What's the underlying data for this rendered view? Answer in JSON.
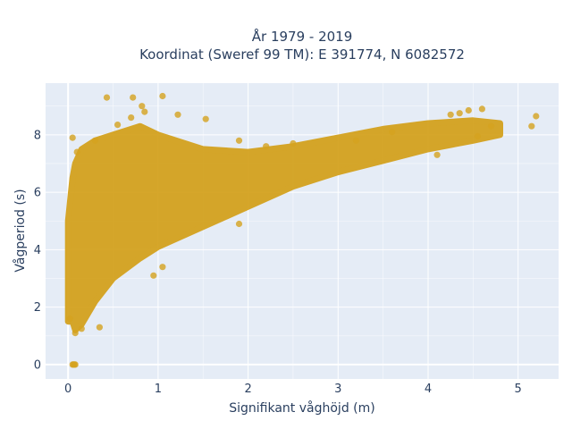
{
  "chart_data": {
    "type": "scatter",
    "title": "År 1979 - 2019",
    "subtitle": "Koordinat (Sweref 99 TM): E 391774, N 6082572",
    "xlabel": "Signifikant våghöjd (m)",
    "ylabel": "Vågperiod (s)",
    "xlim": [
      -0.25,
      5.45
    ],
    "ylim": [
      -0.5,
      9.8
    ],
    "x_ticks": [
      0,
      1,
      2,
      3,
      4,
      5
    ],
    "y_ticks": [
      0,
      2,
      4,
      6,
      8
    ],
    "x_tick_labels": [
      "0",
      "1",
      "2",
      "3",
      "4",
      "5"
    ],
    "y_tick_labels": [
      "0",
      "2",
      "4",
      "6",
      "8"
    ],
    "grid": true,
    "legend": "none",
    "marker_color": "#d4a21f",
    "plot_background": "#e5ecf6",
    "envelope": {
      "x": [
        0.0,
        0.05,
        0.08,
        0.15,
        0.3,
        0.5,
        0.8,
        1.0,
        1.5,
        2.0,
        2.5,
        3.0,
        3.5,
        4.0,
        4.5,
        4.8
      ],
      "y_low": [
        1.5,
        1.5,
        1.2,
        1.4,
        2.2,
        3.0,
        3.7,
        4.1,
        4.8,
        5.5,
        6.2,
        6.7,
        7.1,
        7.5,
        7.8,
        8.0
      ],
      "y_high": [
        5.0,
        6.5,
        7.0,
        7.5,
        7.8,
        8.0,
        8.3,
        8.0,
        7.5,
        7.4,
        7.6,
        7.9,
        8.2,
        8.4,
        8.5,
        8.4
      ]
    },
    "points": [
      {
        "x": 0.05,
        "y": 0.0
      },
      {
        "x": 0.06,
        "y": 0.0
      },
      {
        "x": 0.07,
        "y": 0.0
      },
      {
        "x": 0.08,
        "y": 0.0
      },
      {
        "x": 0.43,
        "y": 9.3
      },
      {
        "x": 0.72,
        "y": 9.3
      },
      {
        "x": 1.05,
        "y": 9.35
      },
      {
        "x": 0.82,
        "y": 9.0
      },
      {
        "x": 0.7,
        "y": 8.6
      },
      {
        "x": 0.85,
        "y": 8.8
      },
      {
        "x": 1.22,
        "y": 8.7
      },
      {
        "x": 1.53,
        "y": 8.55
      },
      {
        "x": 0.55,
        "y": 8.35
      },
      {
        "x": 4.25,
        "y": 8.7
      },
      {
        "x": 4.35,
        "y": 8.75
      },
      {
        "x": 4.45,
        "y": 8.85
      },
      {
        "x": 4.6,
        "y": 8.9
      },
      {
        "x": 4.7,
        "y": 8.3
      },
      {
        "x": 5.15,
        "y": 8.3
      },
      {
        "x": 5.2,
        "y": 8.65
      },
      {
        "x": 4.1,
        "y": 7.3
      },
      {
        "x": 4.55,
        "y": 7.95
      },
      {
        "x": 1.05,
        "y": 3.4
      },
      {
        "x": 0.95,
        "y": 3.1
      },
      {
        "x": 1.9,
        "y": 4.9
      },
      {
        "x": 1.9,
        "y": 7.8
      },
      {
        "x": 2.2,
        "y": 7.6
      },
      {
        "x": 2.5,
        "y": 7.7
      },
      {
        "x": 0.35,
        "y": 1.3
      },
      {
        "x": 0.08,
        "y": 1.1
      },
      {
        "x": 0.15,
        "y": 1.25
      },
      {
        "x": 0.02,
        "y": 1.6
      },
      {
        "x": 0.05,
        "y": 7.9
      },
      {
        "x": 0.1,
        "y": 7.4
      },
      {
        "x": 0.3,
        "y": 7.8
      },
      {
        "x": 3.2,
        "y": 7.8
      },
      {
        "x": 3.6,
        "y": 8.1
      }
    ]
  }
}
